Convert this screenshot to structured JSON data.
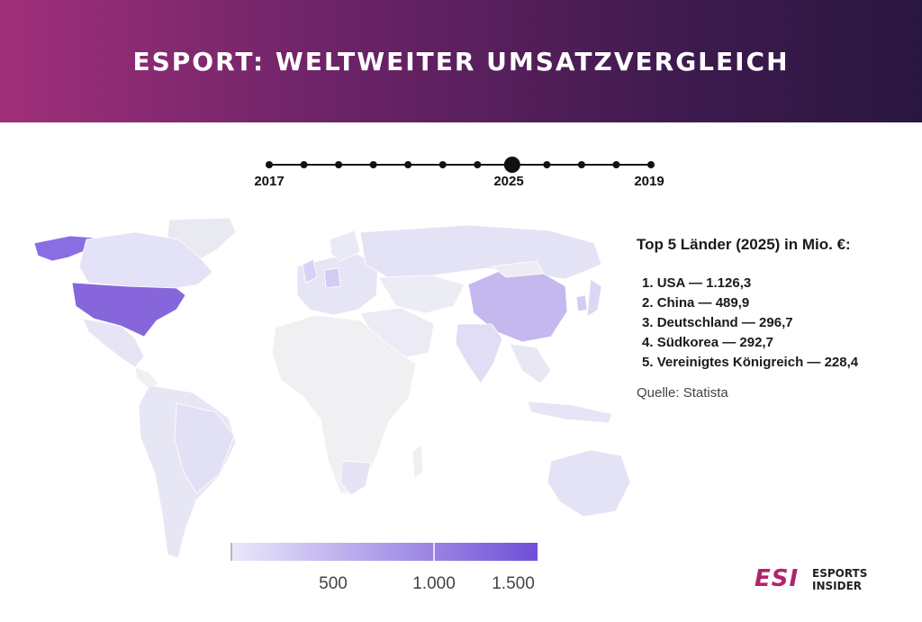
{
  "header": {
    "title": "ESPORT: WELTWEITER UMSATZVERGLEICH"
  },
  "timeline": {
    "years": [
      "2017",
      "2025",
      "2019"
    ],
    "dot_count": 12,
    "selected_index": 7
  },
  "panel": {
    "title": "Top 5 Länder (2025) in Mio. €:",
    "ranking": [
      {
        "rank": "1.",
        "country": "USA",
        "value": "1.126,3"
      },
      {
        "rank": "2.",
        "country": "China",
        "value": "489,9"
      },
      {
        "rank": "3.",
        "country": "Deutschland",
        "value": "296,7"
      },
      {
        "rank": "4.",
        "country": "Südkorea",
        "value": "292,7"
      },
      {
        "rank": "5.",
        "country": "Vereinigtes Königreich",
        "value": "228,4"
      }
    ],
    "source": "Quelle: Statista"
  },
  "colorbar": {
    "ticks": [
      "500",
      "1.000",
      "1.500"
    ],
    "color_low": "#ebe8fb",
    "color_high": "#6f4fd8"
  },
  "logo": {
    "mark": "ESI",
    "line1": "ESPORTS",
    "line2": "INSIDER"
  },
  "colors": {
    "accent": "#b0236e",
    "header_start": "#a02f7a",
    "header_end": "#2a1740"
  },
  "chart_data": {
    "type": "choropleth",
    "title": "Top 5 Länder (2025) in Mio. €:",
    "unit": "Mio. €",
    "year": "2025",
    "categories": [
      "USA",
      "China",
      "Deutschland",
      "Südkorea",
      "Vereinigtes Königreich"
    ],
    "values": [
      1126.3,
      489.9,
      296.7,
      292.7,
      228.4
    ],
    "color_scale": {
      "ticks": [
        500,
        1000,
        1500
      ],
      "range": [
        0,
        1600
      ]
    }
  }
}
